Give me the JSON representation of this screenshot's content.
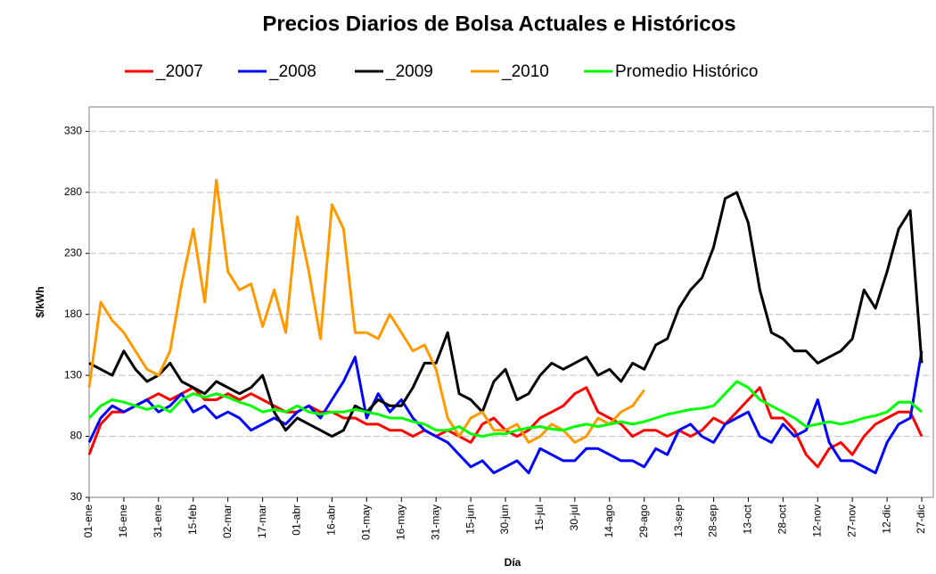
{
  "chart_data": {
    "type": "line",
    "title": "Precios Diarios de Bolsa Actuales e Históricos",
    "x_label": "Día",
    "y_label": "$/kWh",
    "x": [
      0,
      5,
      10,
      15,
      20,
      25,
      30,
      35,
      40,
      45,
      50,
      55,
      60,
      65,
      70,
      75,
      80,
      85,
      90,
      95,
      100,
      105,
      110,
      115,
      120,
      125,
      130,
      135,
      140,
      145,
      150,
      155,
      160,
      165,
      170,
      175,
      180,
      185,
      190,
      195,
      200,
      205,
      210,
      215,
      220,
      225,
      230,
      235,
      240,
      245,
      250,
      255,
      260,
      265,
      270,
      275,
      280,
      285,
      290,
      295,
      300,
      305,
      310,
      315,
      320,
      325,
      330,
      335,
      340,
      345,
      350,
      355,
      360
    ],
    "xlim": [
      0,
      365
    ],
    "xticks": [
      {
        "value": 0,
        "label": "01-ene"
      },
      {
        "value": 15,
        "label": "16-ene"
      },
      {
        "value": 30,
        "label": "31-ene"
      },
      {
        "value": 45,
        "label": "15-feb"
      },
      {
        "value": 60,
        "label": "02-mar"
      },
      {
        "value": 75,
        "label": "17-mar"
      },
      {
        "value": 90,
        "label": "01-abr"
      },
      {
        "value": 105,
        "label": "16-abr"
      },
      {
        "value": 120,
        "label": "01-may"
      },
      {
        "value": 135,
        "label": "16-may"
      },
      {
        "value": 150,
        "label": "31-may"
      },
      {
        "value": 165,
        "label": "15-jun"
      },
      {
        "value": 180,
        "label": "30-jun"
      },
      {
        "value": 195,
        "label": "15-jul"
      },
      {
        "value": 210,
        "label": "30-jul"
      },
      {
        "value": 225,
        "label": "14-ago"
      },
      {
        "value": 240,
        "label": "29-ago"
      },
      {
        "value": 255,
        "label": "13-sep"
      },
      {
        "value": 270,
        "label": "28-sep"
      },
      {
        "value": 285,
        "label": "13-oct"
      },
      {
        "value": 300,
        "label": "28-oct"
      },
      {
        "value": 315,
        "label": "12-nov"
      },
      {
        "value": 330,
        "label": "27-nov"
      },
      {
        "value": 345,
        "label": "12-dic"
      },
      {
        "value": 360,
        "label": "27-dic"
      }
    ],
    "ylim": [
      30,
      350
    ],
    "yticks": [
      30,
      80,
      130,
      180,
      230,
      280,
      330
    ],
    "grid": true,
    "series": [
      {
        "name": "_2007",
        "color": "#ff0000",
        "values": [
          65,
          90,
          100,
          100,
          105,
          110,
          115,
          110,
          115,
          120,
          110,
          110,
          115,
          110,
          115,
          110,
          105,
          100,
          100,
          105,
          100,
          100,
          95,
          95,
          90,
          90,
          85,
          85,
          80,
          85,
          80,
          85,
          80,
          75,
          90,
          95,
          85,
          80,
          85,
          95,
          100,
          105,
          115,
          120,
          100,
          95,
          90,
          80,
          85,
          85,
          80,
          85,
          80,
          85,
          95,
          90,
          100,
          110,
          120,
          95,
          95,
          85,
          65,
          55,
          70,
          75,
          65,
          80,
          90,
          95,
          100,
          100,
          80
        ]
      },
      {
        "name": "_2008",
        "color": "#0000ff",
        "values": [
          75,
          95,
          105,
          100,
          105,
          110,
          100,
          105,
          115,
          100,
          105,
          95,
          100,
          95,
          85,
          90,
          95,
          90,
          100,
          105,
          95,
          110,
          125,
          145,
          95,
          115,
          100,
          110,
          95,
          85,
          80,
          75,
          65,
          55,
          60,
          50,
          55,
          60,
          50,
          70,
          65,
          60,
          60,
          70,
          70,
          65,
          60,
          60,
          55,
          70,
          65,
          85,
          90,
          80,
          75,
          90,
          95,
          100,
          80,
          75,
          90,
          80,
          85,
          110,
          75,
          60,
          60,
          55,
          50,
          75,
          90,
          95,
          150
        ]
      },
      {
        "name": "_2009",
        "color": "#000000",
        "values": [
          140,
          135,
          130,
          150,
          135,
          125,
          130,
          140,
          125,
          120,
          115,
          125,
          120,
          115,
          120,
          130,
          100,
          85,
          95,
          90,
          85,
          80,
          85,
          105,
          100,
          110,
          105,
          105,
          120,
          140,
          140,
          165,
          115,
          110,
          100,
          125,
          135,
          110,
          115,
          130,
          140,
          135,
          140,
          145,
          130,
          135,
          125,
          140,
          135,
          155,
          160,
          185,
          200,
          210,
          235,
          275,
          280,
          255,
          200,
          165,
          160,
          150,
          150,
          140,
          145,
          150,
          160,
          200,
          185,
          215,
          250,
          265,
          140
        ]
      },
      {
        "name": "_2010",
        "color": "#ff9900",
        "values": [
          120,
          190,
          175,
          165,
          150,
          135,
          130,
          150,
          205,
          250,
          190,
          290,
          215,
          200,
          205,
          170,
          200,
          165,
          260,
          215,
          160,
          270,
          250,
          165,
          165,
          160,
          180,
          165,
          150,
          155,
          135,
          95,
          80,
          95,
          100,
          85,
          85,
          90,
          75,
          80,
          90,
          85,
          75,
          80,
          95,
          90,
          100,
          105,
          118,
          null,
          null,
          null,
          null,
          null,
          null,
          null,
          null,
          null,
          null,
          null,
          null,
          null,
          null,
          null,
          null,
          null,
          null,
          null,
          null,
          null,
          null,
          null,
          null
        ]
      },
      {
        "name": "Promedio Histórico",
        "color": "#00ff00",
        "values": [
          95,
          105,
          110,
          108,
          105,
          102,
          105,
          100,
          110,
          115,
          112,
          115,
          112,
          108,
          105,
          100,
          102,
          100,
          105,
          100,
          98,
          100,
          100,
          102,
          100,
          98,
          95,
          95,
          92,
          90,
          85,
          85,
          88,
          82,
          80,
          82,
          82,
          85,
          87,
          88,
          86,
          85,
          88,
          90,
          88,
          90,
          92,
          90,
          92,
          95,
          98,
          100,
          102,
          103,
          105,
          115,
          125,
          120,
          110,
          105,
          100,
          95,
          88,
          90,
          92,
          90,
          92,
          95,
          97,
          100,
          108,
          108,
          100
        ]
      }
    ]
  }
}
